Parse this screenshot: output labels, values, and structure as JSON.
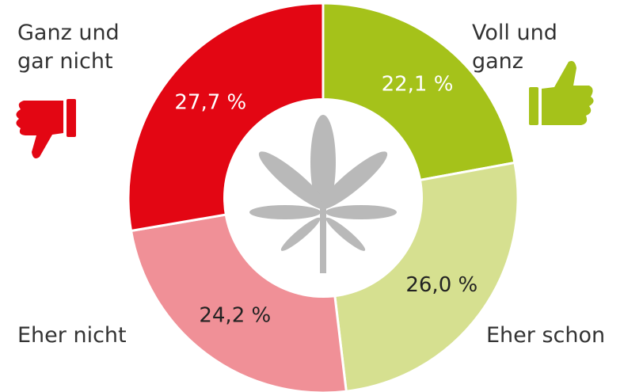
{
  "chart_data": {
    "type": "donut",
    "categories": [
      "Voll und ganz",
      "Eher schon",
      "Eher nicht",
      "Ganz und gar nicht"
    ],
    "values": [
      22.1,
      26.0,
      24.2,
      27.7
    ],
    "value_labels": [
      "22,1 %",
      "26,0 %",
      "24,2 %",
      "27,7 %"
    ],
    "colors": [
      "#a5c21a",
      "#d6e090",
      "#f09097",
      "#e30613"
    ],
    "label_colors": [
      "#ffffff",
      "#222222",
      "#222222",
      "#ffffff"
    ]
  }
}
